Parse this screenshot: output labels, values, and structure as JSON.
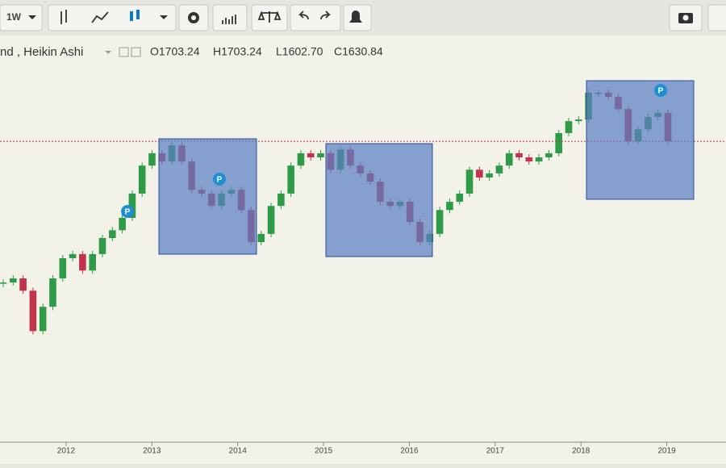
{
  "toolbar": {
    "interval": "1W"
  },
  "legend": {
    "symbol": "nd , Heikin Ashi",
    "ohlc": [
      "O1703.24",
      "H1703.24",
      "L1602.70",
      "C1630.84"
    ]
  },
  "markers": [
    "P",
    "P",
    "P"
  ],
  "chart_data": {
    "type": "candlestick",
    "values": [
      1287,
      1297,
      1267,
      1169,
      1228,
      1297,
      1346,
      1356,
      1316,
      1356,
      1395,
      1414,
      1444,
      1503,
      1571,
      1601,
      1581,
      1620,
      1581,
      1512,
      1503,
      1473,
      1503,
      1512,
      1463,
      1385,
      1405,
      1473,
      1503,
      1571,
      1601,
      1591,
      1601,
      1561,
      1610,
      1571,
      1552,
      1532,
      1483,
      1473,
      1483,
      1434,
      1385,
      1405,
      1463,
      1483,
      1503,
      1561,
      1542,
      1552,
      1571,
      1601,
      1591,
      1581,
      1591,
      1601,
      1650,
      1679,
      1683,
      1748,
      1748,
      1738,
      1708,
      1630,
      1659,
      1689,
      1699,
      1630
    ],
    "up_color": "#2f9a48",
    "down_color": "#c3334b",
    "ylim": [
      905,
      1885
    ],
    "xlim": [
      2011.23,
      2019.69
    ],
    "xticks": [
      2012,
      2013,
      2014,
      2015,
      2016,
      2017,
      2018,
      2019
    ],
    "price_line": true
  }
}
